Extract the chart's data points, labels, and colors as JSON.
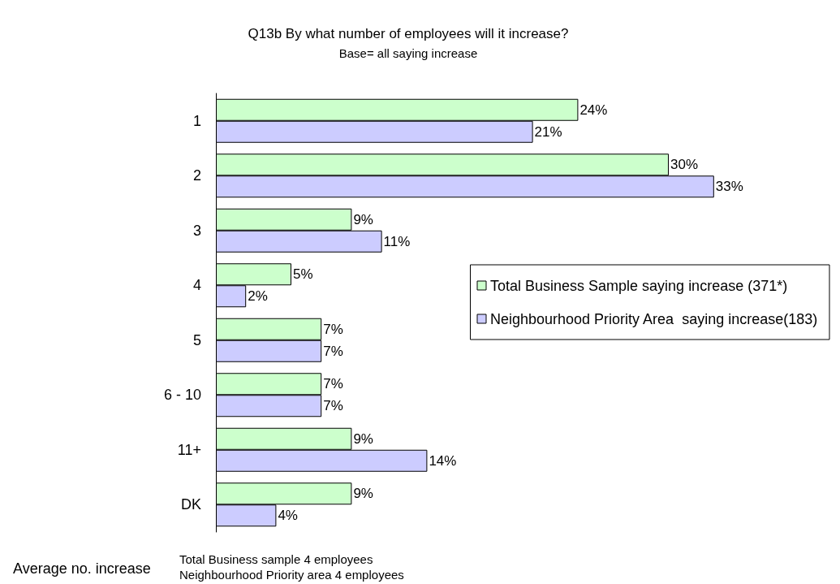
{
  "chart_data": {
    "type": "bar",
    "orientation": "horizontal",
    "title": "Q13b By what number of employees will it increase?",
    "subtitle": "Base= all saying increase",
    "categories": [
      "1",
      "2",
      "3",
      "4",
      "5",
      "6 - 10",
      "11+",
      "DK"
    ],
    "series": [
      {
        "name": "Total Business Sample saying increase (371*)",
        "color": "#ccffcc",
        "values": [
          24,
          30,
          9,
          5,
          7,
          7,
          9,
          9
        ],
        "value_labels": [
          "24%",
          "30%",
          "9%",
          "5%",
          "7%",
          "7%",
          "9%",
          "9%"
        ]
      },
      {
        "name": "Neighbourhood Priority Area  saying increase(183)",
        "color": "#ccccff",
        "values": [
          21,
          33,
          11,
          2,
          7,
          7,
          14,
          4
        ],
        "value_labels": [
          "21%",
          "33%",
          "11%",
          "2%",
          "7%",
          "7%",
          "14%",
          "4%"
        ]
      }
    ],
    "annotations": [
      "Average no. increase",
      "Total Business sample 4 employees",
      "Neighbourhood Priority area 4 employees"
    ],
    "legend": "right",
    "grid": false
  }
}
